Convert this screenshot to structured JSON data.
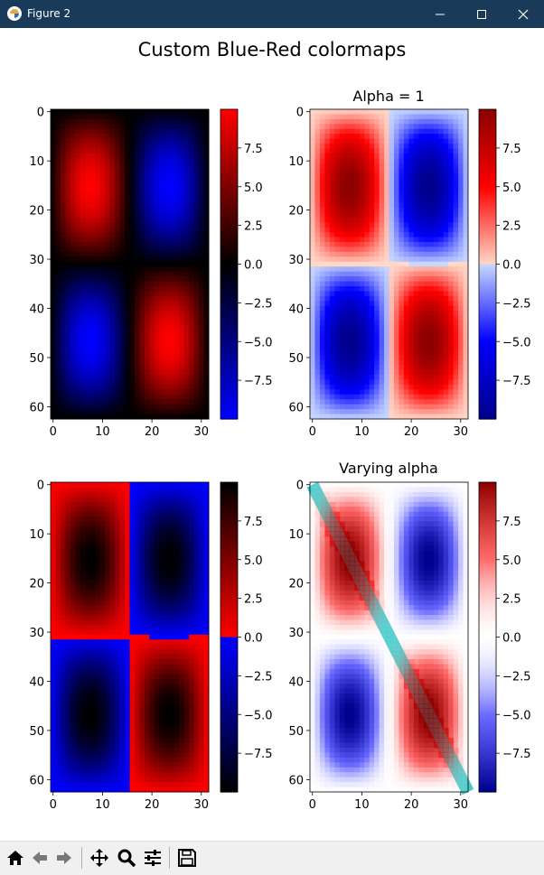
{
  "window": {
    "title": "Figure 2"
  },
  "figure": {
    "title": "Custom Blue-Red colormaps"
  },
  "toolbar": {
    "buttons": [
      "home-icon",
      "back-icon",
      "forward-icon",
      "pan-icon",
      "zoom-icon",
      "configure-subplots-icon",
      "save-icon"
    ]
  },
  "chart_data": [
    {
      "type": "heatmap",
      "title": "",
      "xlim": [
        -0.5,
        31.5
      ],
      "ylim": [
        62.5,
        -0.5
      ],
      "xticks": [
        0,
        10,
        20,
        30
      ],
      "yticks": [
        0,
        10,
        20,
        30,
        40,
        50,
        60
      ],
      "colorbar": {
        "range": [
          -10,
          10
        ],
        "ticks": [
          7.5,
          5.0,
          2.5,
          0.0,
          -2.5,
          -5.0,
          -7.5
        ],
        "colors": [
          "#0000ff",
          "#000000",
          "#ff0000"
        ]
      },
      "colormap": "blue-black-red"
    },
    {
      "type": "heatmap",
      "title": "Alpha = 1",
      "xlim": [
        -0.5,
        31.5
      ],
      "ylim": [
        62.5,
        -0.5
      ],
      "xticks": [
        0,
        10,
        20,
        30
      ],
      "yticks": [
        0,
        10,
        20,
        30,
        40,
        50,
        60
      ],
      "colorbar": {
        "range": [
          -10,
          10
        ],
        "ticks": [
          7.5,
          5.0,
          2.5,
          0.0,
          -2.5,
          -5.0,
          -7.5
        ],
        "colors": [
          "#00008b",
          "#0000ff",
          "#c8d8ff",
          "#ffd8c8",
          "#ff0000",
          "#8b0000"
        ]
      },
      "colormap": "darkblue-blue-white-red-darkred"
    },
    {
      "type": "heatmap",
      "title": "",
      "xlim": [
        -0.5,
        31.5
      ],
      "ylim": [
        62.5,
        -0.5
      ],
      "xticks": [
        0,
        10,
        20,
        30
      ],
      "yticks": [
        0,
        10,
        20,
        30,
        40,
        50,
        60
      ],
      "colorbar": {
        "range": [
          -10,
          10
        ],
        "ticks": [
          7.5,
          5.0,
          2.5,
          0.0,
          -2.5,
          -5.0,
          -7.5
        ],
        "colors": [
          "#000000",
          "#0000ff",
          "#ff0000",
          "#000000"
        ]
      },
      "colormap": "black-blue / red-black"
    },
    {
      "type": "heatmap",
      "title": "Varying alpha",
      "xlim": [
        -0.5,
        31.5
      ],
      "ylim": [
        62.5,
        -0.5
      ],
      "xticks": [
        0,
        10,
        20,
        30
      ],
      "yticks": [
        0,
        10,
        20,
        30,
        40,
        50,
        60
      ],
      "colorbar": {
        "range": [
          -10,
          10
        ],
        "ticks": [
          7.5,
          5.0,
          2.5,
          0.0,
          -2.5,
          -5.0,
          -7.5
        ],
        "colors": [
          "#00008b",
          "#4040ff",
          "#ffffff",
          "#ff4040",
          "#8b0000"
        ]
      },
      "colormap": "blue-white-red varying alpha",
      "overlay_line": {
        "x": [
          0,
          31.5
        ],
        "y": [
          0,
          62.5
        ],
        "color": "#2ec4c4"
      }
    }
  ]
}
